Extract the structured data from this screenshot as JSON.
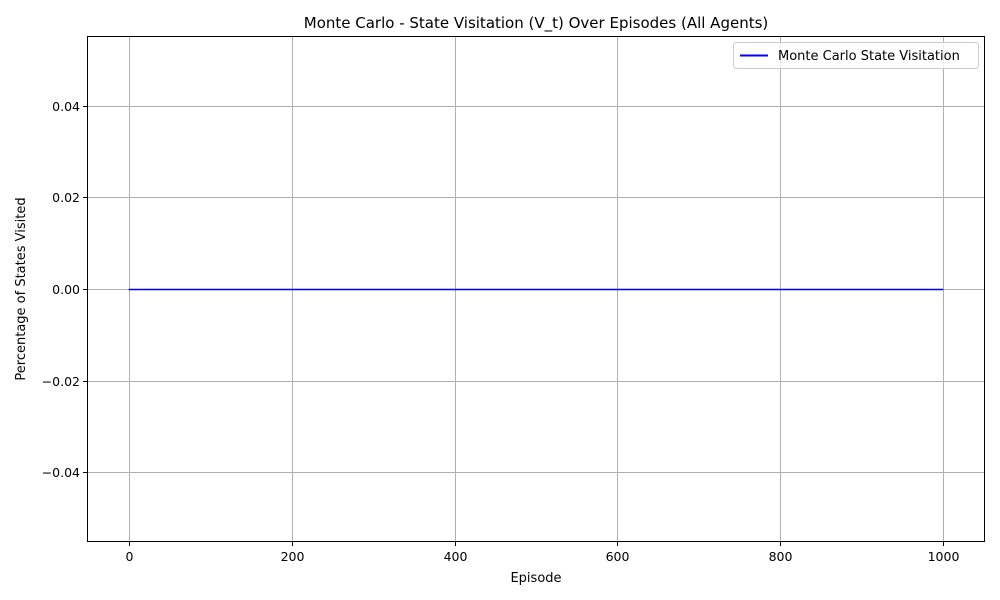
{
  "chart_data": {
    "type": "line",
    "title": "Monte Carlo - State Visitation (V_t) Over Episodes (All Agents)",
    "xlabel": "Episode",
    "ylabel": "Percentage of States Visited",
    "xlim": [
      -50,
      1050
    ],
    "ylim": [
      -0.055,
      0.055
    ],
    "x_ticks": [
      0,
      200,
      400,
      600,
      800,
      1000
    ],
    "y_ticks": [
      -0.04,
      -0.02,
      0.0,
      0.02,
      0.04
    ],
    "x_tick_labels": [
      "0",
      "200",
      "400",
      "600",
      "800",
      "1000"
    ],
    "y_tick_labels": [
      "−0.04",
      "−0.02",
      "0.00",
      "0.02",
      "0.04"
    ],
    "grid": true,
    "legend_position": "top-right",
    "series": [
      {
        "name": "Monte Carlo State Visitation",
        "color": "#0000ff",
        "x": [
          0,
          1000
        ],
        "y": [
          0.0,
          0.0
        ]
      }
    ]
  }
}
